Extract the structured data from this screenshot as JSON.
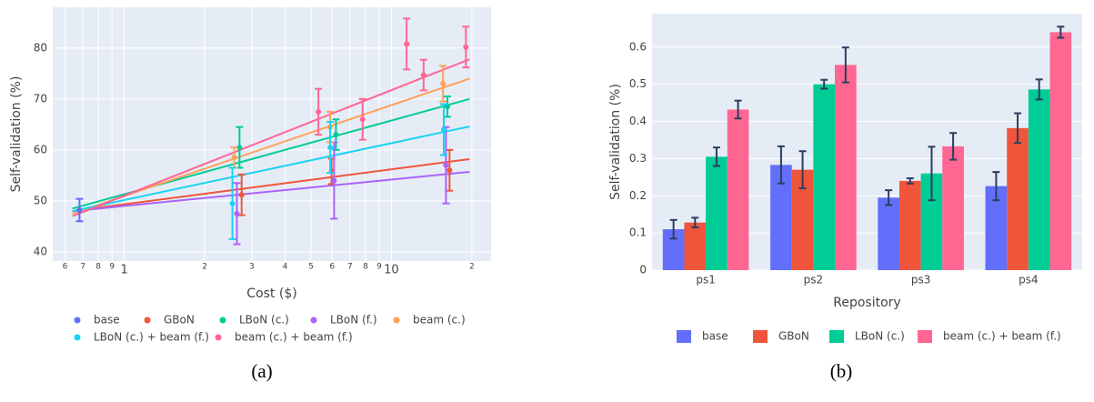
{
  "chart_data": [
    {
      "type": "scatter",
      "caption": "(a)",
      "x_label": "Cost ($)",
      "y_label": "Self-validation (%)",
      "xscale": "log",
      "xlim": [
        0.54,
        23.6
      ],
      "ylim": [
        38.2,
        88
      ],
      "xticks": [
        {
          "value": 0.6,
          "label": "6"
        },
        {
          "value": 0.7,
          "label": "7"
        },
        {
          "value": 0.8,
          "label": "8"
        },
        {
          "value": 0.9,
          "label": "9"
        },
        1,
        2,
        3,
        4,
        5,
        6,
        7,
        8,
        9,
        10,
        {
          "value": 20,
          "label": "2"
        }
      ],
      "yticks": [
        40,
        50,
        60,
        70,
        80
      ],
      "grid": true,
      "series": [
        {
          "name": "base",
          "color": "#636efa",
          "x": [
            0.68
          ],
          "values": [
            48.2
          ],
          "errors": [
            2.2
          ]
        },
        {
          "name": "GBoN",
          "color": "#ef553b",
          "x": [
            2.75,
            5.97,
            16.5
          ],
          "values": [
            51.2,
            55.8,
            56
          ],
          "errors": [
            4,
            2.5,
            4
          ],
          "fit_x": [
            0.64,
            19.6
          ],
          "fit_y": [
            48,
            58.2
          ]
        },
        {
          "name": "LBoN (c.)",
          "color": "#00cc96",
          "x": [
            2.7,
            6.2,
            16.2
          ],
          "values": [
            60.5,
            63,
            68.5
          ],
          "errors": [
            4,
            3,
            2
          ],
          "fit_x": [
            0.64,
            19.6
          ],
          "fit_y": [
            48.5,
            70
          ]
        },
        {
          "name": "LBoN (f.)",
          "color": "#ab63fa",
          "x": [
            2.64,
            6.1,
            16
          ],
          "values": [
            47.5,
            54,
            57
          ],
          "errors": [
            6,
            7.5,
            7.5
          ],
          "fit_x": [
            0.64,
            19.6
          ],
          "fit_y": [
            48,
            55.7
          ]
        },
        {
          "name": "beam (c.)",
          "color": "#ffa15a",
          "x": [
            2.58,
            5.9,
            15.6
          ],
          "values": [
            58.5,
            64.5,
            73
          ],
          "errors": [
            2,
            3,
            3.5
          ],
          "fit_x": [
            0.64,
            19.6
          ],
          "fit_y": [
            47.5,
            74
          ]
        },
        {
          "name": "LBoN (c.) + beam (f.)",
          "color": "#19d3f3",
          "x": [
            2.54,
            5.9,
            15.7
          ],
          "values": [
            49.5,
            60.5,
            64
          ],
          "errors": [
            7,
            5,
            5
          ],
          "fit_x": [
            0.64,
            19.6
          ],
          "fit_y": [
            48,
            64.6
          ]
        },
        {
          "name": "beam (c.) + beam (f.)",
          "color": "#ff6692",
          "x": [
            5.33,
            7.8,
            11.4,
            13.2,
            19
          ],
          "values": [
            67.5,
            66,
            80.8,
            74.7,
            80.2
          ],
          "errors": [
            4.5,
            4,
            5,
            3,
            4
          ],
          "fit_x": [
            0.64,
            19.6
          ],
          "fit_y": [
            47,
            77.8
          ]
        }
      ]
    },
    {
      "type": "bar",
      "caption": "(b)",
      "x_label": "Repository",
      "y_label": "Self-validation (%)",
      "categories": [
        "ps1",
        "ps2",
        "ps3",
        "ps4"
      ],
      "ylim": [
        0,
        0.69
      ],
      "yticks": [
        0,
        0.1,
        0.2,
        0.3,
        0.4,
        0.5,
        0.6
      ],
      "grid": true,
      "series": [
        {
          "name": "base",
          "color": "#636efa",
          "values": [
            0.11,
            0.283,
            0.195,
            0.226
          ],
          "errors": [
            0.025,
            0.05,
            0.02,
            0.038
          ]
        },
        {
          "name": "GBoN",
          "color": "#ef553b",
          "values": [
            0.128,
            0.27,
            0.24,
            0.382
          ],
          "errors": [
            0.013,
            0.05,
            0.007,
            0.04
          ]
        },
        {
          "name": "LBoN (c.)",
          "color": "#00cc96",
          "values": [
            0.305,
            0.5,
            0.26,
            0.486
          ],
          "errors": [
            0.025,
            0.012,
            0.072,
            0.027
          ]
        },
        {
          "name": "beam (c.) + beam (f.)",
          "color": "#ff6692",
          "values": [
            0.432,
            0.552,
            0.333,
            0.64
          ],
          "errors": [
            0.024,
            0.047,
            0.036,
            0.015
          ]
        }
      ]
    }
  ]
}
